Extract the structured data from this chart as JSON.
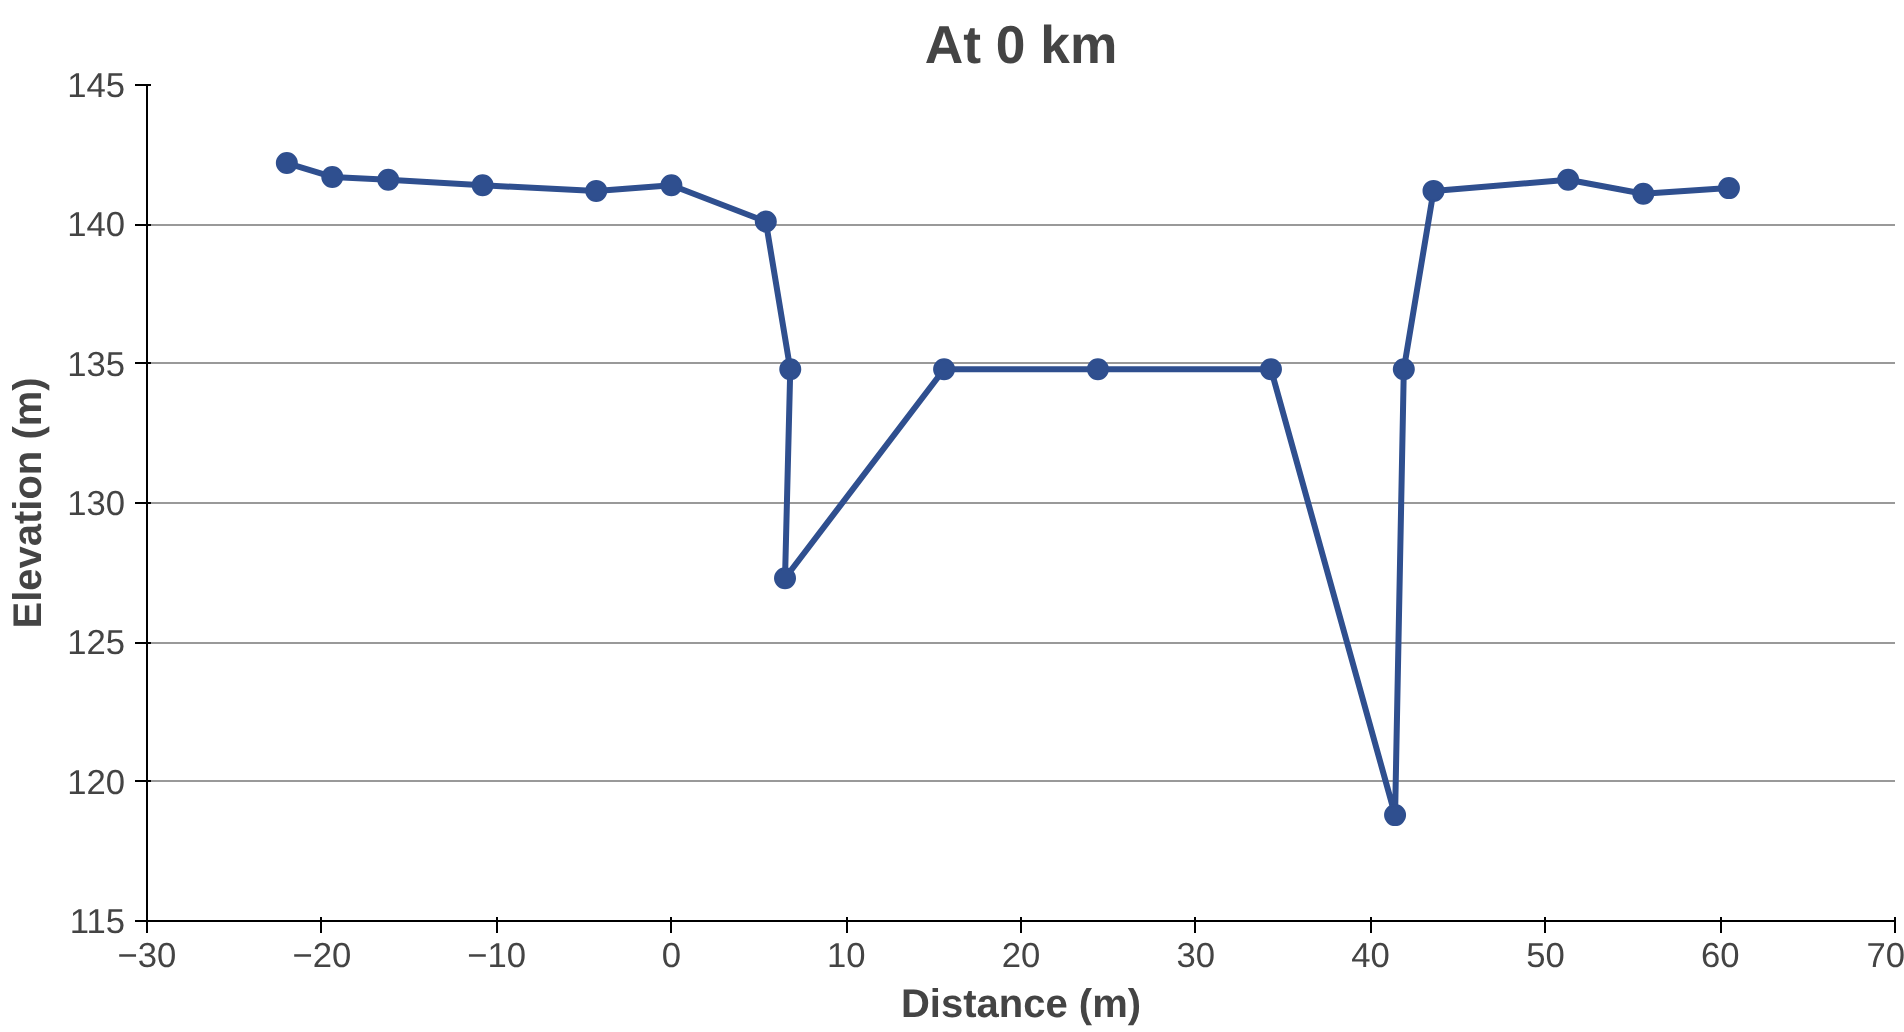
{
  "chart_data": {
    "type": "line",
    "title": "At 0 km",
    "xlabel": "Distance (m)",
    "ylabel": "Elevation (m)",
    "x": [
      -22,
      -19.4,
      -16.2,
      -10.8,
      -4.3,
      0,
      5.4,
      6.8,
      6.5,
      15.6,
      24.4,
      34.3,
      41.4,
      41.9,
      43.6,
      51.3,
      55.6,
      60.5
    ],
    "series": [
      {
        "color": "#2f4f8f",
        "values": [
          142.2,
          141.7,
          141.6,
          141.4,
          141.2,
          141.4,
          140.1,
          134.8,
          127.3,
          134.8,
          134.8,
          134.8,
          118.8,
          134.8,
          141.2,
          141.6,
          141.1,
          141.3
        ]
      }
    ],
    "xlim": [
      -30,
      70
    ],
    "xticks": [
      -30,
      -20,
      -10,
      0,
      10,
      20,
      30,
      40,
      50,
      60,
      70
    ],
    "ylim": [
      115,
      145
    ],
    "yticks": [
      115,
      120,
      125,
      130,
      135,
      140,
      145
    ],
    "grid": "y",
    "marker": "circle",
    "line_style": "solid"
  }
}
